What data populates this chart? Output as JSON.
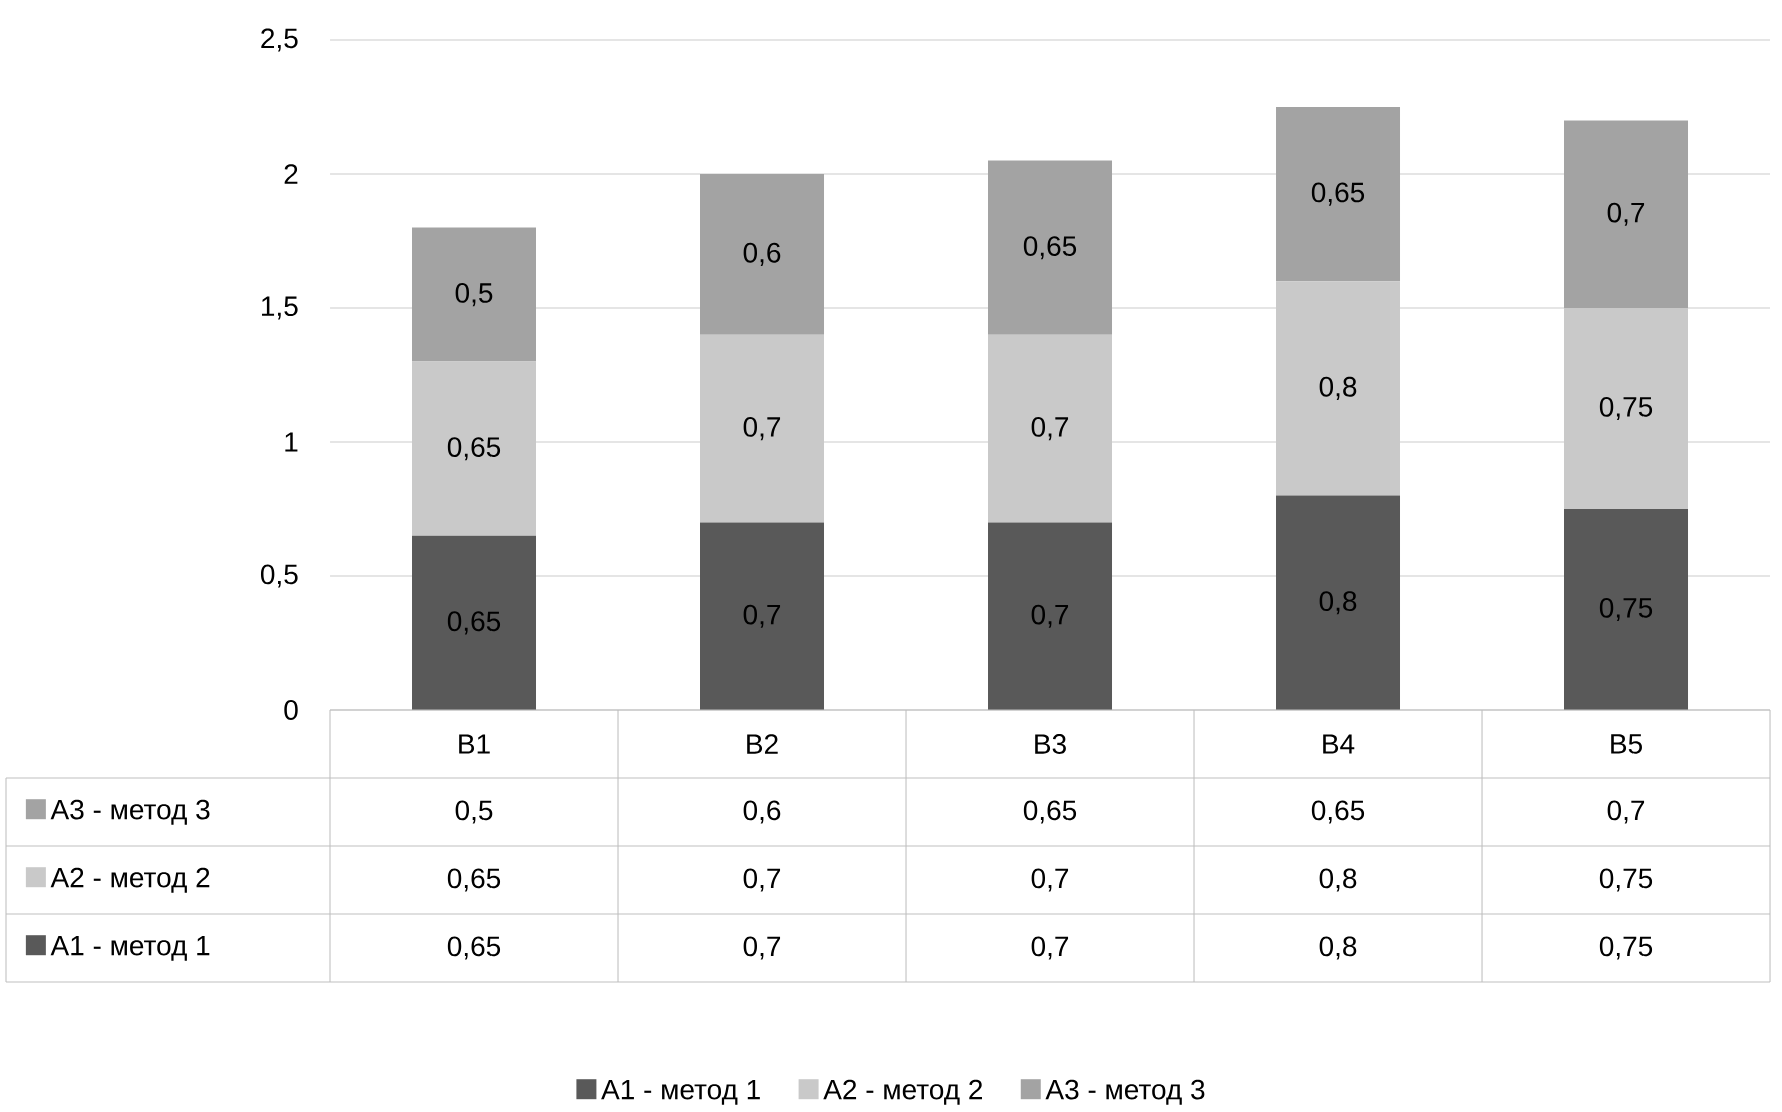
{
  "chart_data": {
    "type": "bar",
    "stacked": true,
    "categories": [
      "B1",
      "B2",
      "B3",
      "B4",
      "B5"
    ],
    "series": [
      {
        "name": "А1 - метод 1",
        "color": "#595959",
        "values": [
          0.65,
          0.7,
          0.7,
          0.8,
          0.75
        ],
        "value_labels": [
          "0,65",
          "0,7",
          "0,7",
          "0,8",
          "0,75"
        ]
      },
      {
        "name": "А2 - метод 2",
        "color": "#c9c9c9",
        "values": [
          0.65,
          0.7,
          0.7,
          0.8,
          0.75
        ],
        "value_labels": [
          "0,65",
          "0,7",
          "0,7",
          "0,8",
          "0,75"
        ]
      },
      {
        "name": "А3 - метод 3",
        "color": "#a3a3a3",
        "values": [
          0.5,
          0.6,
          0.65,
          0.65,
          0.7
        ],
        "value_labels": [
          "0,5",
          "0,6",
          "0,65",
          "0,65",
          "0,7"
        ]
      }
    ],
    "ylim": [
      0,
      2.5
    ],
    "yticks": [
      0,
      {
        "value": 0.5,
        "label": "0,5"
      },
      1,
      {
        "value": 1.5,
        "label": "1,5"
      },
      2,
      {
        "value": 2.5,
        "label": "2,5"
      }
    ],
    "grid": "y",
    "legend": "bottom"
  }
}
